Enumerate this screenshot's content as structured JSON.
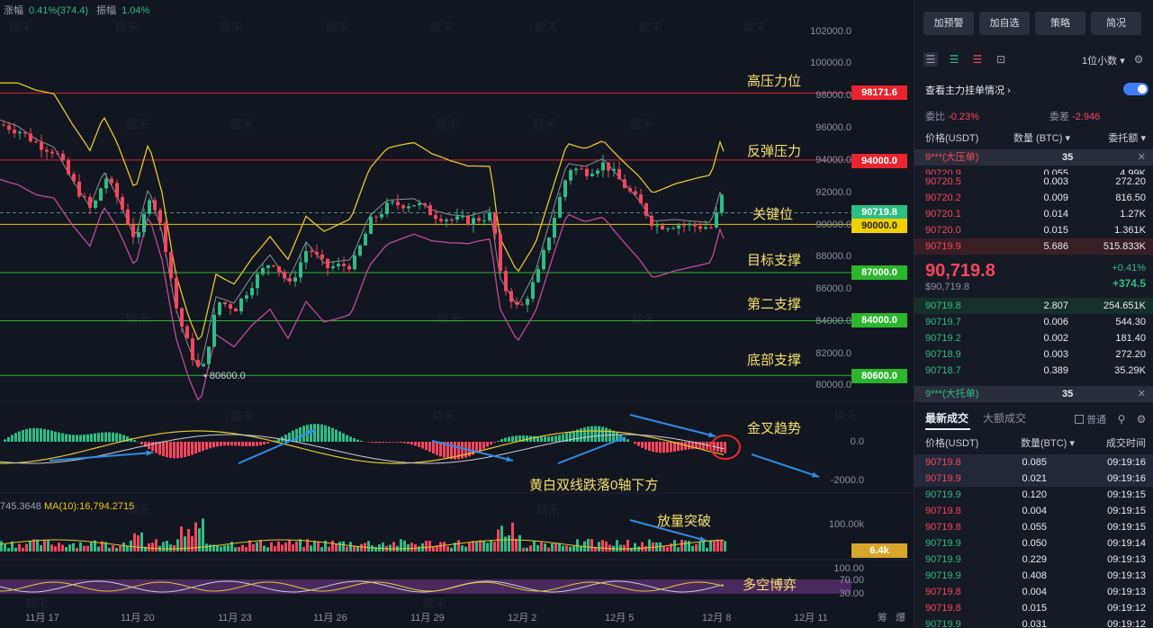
{
  "header": {
    "change_label": "涨幅",
    "change_value": "0.41%(374.4)",
    "amp_label": "振幅",
    "amp_value": "1.04%"
  },
  "volume_header": {
    "ma5_fragment": "745.3648",
    "ma10_label": "MA(10):16,794.2715"
  },
  "price_axis": [
    "102000.0",
    "100000.0",
    "98000.0",
    "96000.0",
    "94000.0",
    "92000.0",
    "90000.0",
    "88000.0",
    "86000.0",
    "84000.0",
    "82000.0",
    "80000.0"
  ],
  "macd_axis": [
    "0.0",
    "-2000.0"
  ],
  "vol_axis": [
    "100.00k"
  ],
  "osc_axis": [
    "100.00",
    "70.00",
    "30.00"
  ],
  "price_tags": [
    {
      "text": "98171.6",
      "color": "#e8242e"
    },
    {
      "text": "94000.0",
      "color": "#e8242e"
    },
    {
      "text": "90719.8",
      "color": "#2ebd85"
    },
    {
      "text": "90000.0",
      "color": "#f0d000"
    },
    {
      "text": "87000.0",
      "color": "#2db52d"
    },
    {
      "text": "84000.0",
      "color": "#2db52d"
    },
    {
      "text": "80600.0",
      "color": "#2db52d"
    }
  ],
  "vol_tag": {
    "text": "6.4k",
    "color": "#d8a62b"
  },
  "low_label": "80600.0",
  "annotations": {
    "high_resistance": "高压力位",
    "rebound_resistance": "反弹压力",
    "key_level": "关键位",
    "target_support": "目标支撑",
    "second_support": "第二支撑",
    "bottom_support": "底部支撑",
    "golden_cross": "金叉趋势",
    "below_zero": "黄白双线跌落0轴下方",
    "volume_break": "放量突破",
    "long_short": "多空博弈"
  },
  "x_axis": [
    "11月 17",
    "11月 20",
    "11月 23",
    "11月 26",
    "11月 29",
    "12月 2",
    "12月 5",
    "12月 8",
    "12月 11"
  ],
  "x_icons": [
    "筹",
    "爆"
  ],
  "watermark": "鑄禾",
  "panel": {
    "buttons": [
      "加预警",
      "加自选",
      "策略",
      "简况"
    ],
    "precision": "1位小数",
    "order_label": "查看主力挂单情况",
    "ratio_label": "委比",
    "ratio_value": "-0.23%",
    "diff_label": "委差",
    "diff_value": "-2.946",
    "col_price": "价格(USDT)",
    "col_qty": "数量 (BTC)",
    "col_total": "委托额",
    "ask_banner": {
      "label": "9***(大压单)",
      "value": "35"
    },
    "asks": [
      {
        "p": "90720.9",
        "q": "0.055",
        "t": "4.99K"
      },
      {
        "p": "90720.5",
        "q": "0.003",
        "t": "272.20"
      },
      {
        "p": "90720.2",
        "q": "0.009",
        "t": "816.50"
      },
      {
        "p": "90720.1",
        "q": "0.014",
        "t": "1.27K"
      },
      {
        "p": "90720.0",
        "q": "0.015",
        "t": "1.361K"
      },
      {
        "p": "90719.9",
        "q": "5.686",
        "t": "515.833K"
      }
    ],
    "last_price": "90,719.8",
    "last_sub": "$90,719.8",
    "last_pct": "+0.41%",
    "last_chg": "+374.5",
    "bids": [
      {
        "p": "90719.8",
        "q": "2.807",
        "t": "254.651K"
      },
      {
        "p": "90719.7",
        "q": "0.006",
        "t": "544.30"
      },
      {
        "p": "90719.2",
        "q": "0.002",
        "t": "181.40"
      },
      {
        "p": "90718.9",
        "q": "0.003",
        "t": "272.20"
      },
      {
        "p": "90718.7",
        "q": "0.389",
        "t": "35.29K"
      }
    ],
    "bid_banner": {
      "label": "9***(大托单)",
      "value": "35"
    },
    "tab_latest": "最新成交",
    "tab_big": "大额成交",
    "normal_label": "普通",
    "t_col_price": "价格(USDT)",
    "t_col_qty": "数量(BTC)",
    "t_col_time": "成交时间",
    "trades": [
      {
        "p": "90719.8",
        "q": "0.085",
        "t": "09:19:16",
        "c": "red"
      },
      {
        "p": "90719.9",
        "q": "0.021",
        "t": "09:19:16",
        "c": "red"
      },
      {
        "p": "90719.9",
        "q": "0.120",
        "t": "09:19:15",
        "c": "green"
      },
      {
        "p": "90719.8",
        "q": "0.004",
        "t": "09:19:15",
        "c": "red"
      },
      {
        "p": "90719.8",
        "q": "0.055",
        "t": "09:19:15",
        "c": "red"
      },
      {
        "p": "90719.9",
        "q": "0.050",
        "t": "09:19:14",
        "c": "green"
      },
      {
        "p": "90719.9",
        "q": "0.229",
        "t": "09:19:13",
        "c": "green"
      },
      {
        "p": "90719.9",
        "q": "0.408",
        "t": "09:19:13",
        "c": "green"
      },
      {
        "p": "90719.8",
        "q": "0.004",
        "t": "09:19:13",
        "c": "red"
      },
      {
        "p": "90719.8",
        "q": "0.015",
        "t": "09:19:12",
        "c": "red"
      },
      {
        "p": "90719.9",
        "q": "0.031",
        "t": "09:19:12",
        "c": "green"
      }
    ]
  }
}
